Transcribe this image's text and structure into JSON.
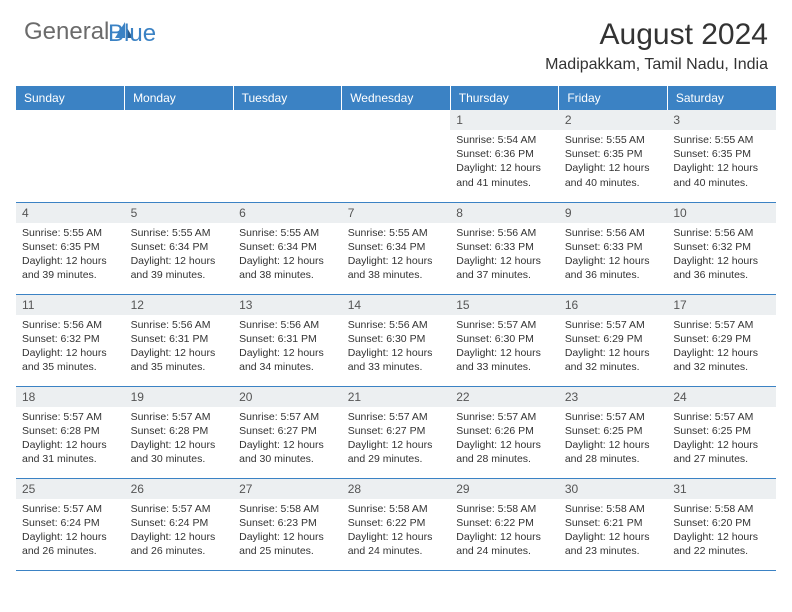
{
  "logo": {
    "general": "General",
    "blue": "Blue"
  },
  "title": "August 2024",
  "location": "Madipakkam, Tamil Nadu, India",
  "weekdays": [
    "Sunday",
    "Monday",
    "Tuesday",
    "Wednesday",
    "Thursday",
    "Friday",
    "Saturday"
  ],
  "colors": {
    "header_bg": "#3b82c4",
    "header_text": "#ffffff",
    "daynum_bg": "#eceff1",
    "border": "#3b82c4",
    "logo_gray": "#6b6b6b",
    "logo_blue": "#3b82c4"
  },
  "weeks": [
    [
      null,
      null,
      null,
      null,
      {
        "n": "1",
        "sr": "5:54 AM",
        "ss": "6:36 PM",
        "dl": "12 hours and 41 minutes."
      },
      {
        "n": "2",
        "sr": "5:55 AM",
        "ss": "6:35 PM",
        "dl": "12 hours and 40 minutes."
      },
      {
        "n": "3",
        "sr": "5:55 AM",
        "ss": "6:35 PM",
        "dl": "12 hours and 40 minutes."
      }
    ],
    [
      {
        "n": "4",
        "sr": "5:55 AM",
        "ss": "6:35 PM",
        "dl": "12 hours and 39 minutes."
      },
      {
        "n": "5",
        "sr": "5:55 AM",
        "ss": "6:34 PM",
        "dl": "12 hours and 39 minutes."
      },
      {
        "n": "6",
        "sr": "5:55 AM",
        "ss": "6:34 PM",
        "dl": "12 hours and 38 minutes."
      },
      {
        "n": "7",
        "sr": "5:55 AM",
        "ss": "6:34 PM",
        "dl": "12 hours and 38 minutes."
      },
      {
        "n": "8",
        "sr": "5:56 AM",
        "ss": "6:33 PM",
        "dl": "12 hours and 37 minutes."
      },
      {
        "n": "9",
        "sr": "5:56 AM",
        "ss": "6:33 PM",
        "dl": "12 hours and 36 minutes."
      },
      {
        "n": "10",
        "sr": "5:56 AM",
        "ss": "6:32 PM",
        "dl": "12 hours and 36 minutes."
      }
    ],
    [
      {
        "n": "11",
        "sr": "5:56 AM",
        "ss": "6:32 PM",
        "dl": "12 hours and 35 minutes."
      },
      {
        "n": "12",
        "sr": "5:56 AM",
        "ss": "6:31 PM",
        "dl": "12 hours and 35 minutes."
      },
      {
        "n": "13",
        "sr": "5:56 AM",
        "ss": "6:31 PM",
        "dl": "12 hours and 34 minutes."
      },
      {
        "n": "14",
        "sr": "5:56 AM",
        "ss": "6:30 PM",
        "dl": "12 hours and 33 minutes."
      },
      {
        "n": "15",
        "sr": "5:57 AM",
        "ss": "6:30 PM",
        "dl": "12 hours and 33 minutes."
      },
      {
        "n": "16",
        "sr": "5:57 AM",
        "ss": "6:29 PM",
        "dl": "12 hours and 32 minutes."
      },
      {
        "n": "17",
        "sr": "5:57 AM",
        "ss": "6:29 PM",
        "dl": "12 hours and 32 minutes."
      }
    ],
    [
      {
        "n": "18",
        "sr": "5:57 AM",
        "ss": "6:28 PM",
        "dl": "12 hours and 31 minutes."
      },
      {
        "n": "19",
        "sr": "5:57 AM",
        "ss": "6:28 PM",
        "dl": "12 hours and 30 minutes."
      },
      {
        "n": "20",
        "sr": "5:57 AM",
        "ss": "6:27 PM",
        "dl": "12 hours and 30 minutes."
      },
      {
        "n": "21",
        "sr": "5:57 AM",
        "ss": "6:27 PM",
        "dl": "12 hours and 29 minutes."
      },
      {
        "n": "22",
        "sr": "5:57 AM",
        "ss": "6:26 PM",
        "dl": "12 hours and 28 minutes."
      },
      {
        "n": "23",
        "sr": "5:57 AM",
        "ss": "6:25 PM",
        "dl": "12 hours and 28 minutes."
      },
      {
        "n": "24",
        "sr": "5:57 AM",
        "ss": "6:25 PM",
        "dl": "12 hours and 27 minutes."
      }
    ],
    [
      {
        "n": "25",
        "sr": "5:57 AM",
        "ss": "6:24 PM",
        "dl": "12 hours and 26 minutes."
      },
      {
        "n": "26",
        "sr": "5:57 AM",
        "ss": "6:24 PM",
        "dl": "12 hours and 26 minutes."
      },
      {
        "n": "27",
        "sr": "5:58 AM",
        "ss": "6:23 PM",
        "dl": "12 hours and 25 minutes."
      },
      {
        "n": "28",
        "sr": "5:58 AM",
        "ss": "6:22 PM",
        "dl": "12 hours and 24 minutes."
      },
      {
        "n": "29",
        "sr": "5:58 AM",
        "ss": "6:22 PM",
        "dl": "12 hours and 24 minutes."
      },
      {
        "n": "30",
        "sr": "5:58 AM",
        "ss": "6:21 PM",
        "dl": "12 hours and 23 minutes."
      },
      {
        "n": "31",
        "sr": "5:58 AM",
        "ss": "6:20 PM",
        "dl": "12 hours and 22 minutes."
      }
    ]
  ],
  "labels": {
    "sunrise": "Sunrise:",
    "sunset": "Sunset:",
    "daylight": "Daylight:"
  }
}
